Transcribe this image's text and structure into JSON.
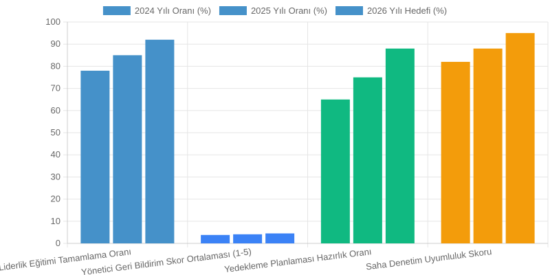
{
  "chart_data": {
    "type": "bar",
    "title": "",
    "xlabel": "",
    "ylabel": "",
    "ylim": [
      0,
      100
    ],
    "yticks": [
      0,
      10,
      20,
      30,
      40,
      50,
      60,
      70,
      80,
      90,
      100
    ],
    "grid": true,
    "legend_position": "top-center",
    "categories": [
      "Liderlik Eğitimi Tamamlama Oranı",
      "Yönetici Geri Bildirim Skor Ortalaması (1-5)",
      "Yedekleme Planlaması Hazırlık Oranı",
      "Saha Denetim Uyumluluk Skoru"
    ],
    "series": [
      {
        "name": "2024 Yılı Oranı (%)",
        "values": [
          78,
          3.8,
          65,
          82
        ]
      },
      {
        "name": "2025 Yılı Oranı (%)",
        "values": [
          85,
          4.1,
          75,
          88
        ]
      },
      {
        "name": "2026 Yılı Hedefi (%)",
        "values": [
          92,
          4.5,
          88,
          95
        ]
      }
    ],
    "category_colors": [
      "#4591c9",
      "#3b82f6",
      "#10b981",
      "#f39c0b"
    ],
    "legend_colors": [
      "#4591c9",
      "#4591c9",
      "#4591c9"
    ]
  }
}
